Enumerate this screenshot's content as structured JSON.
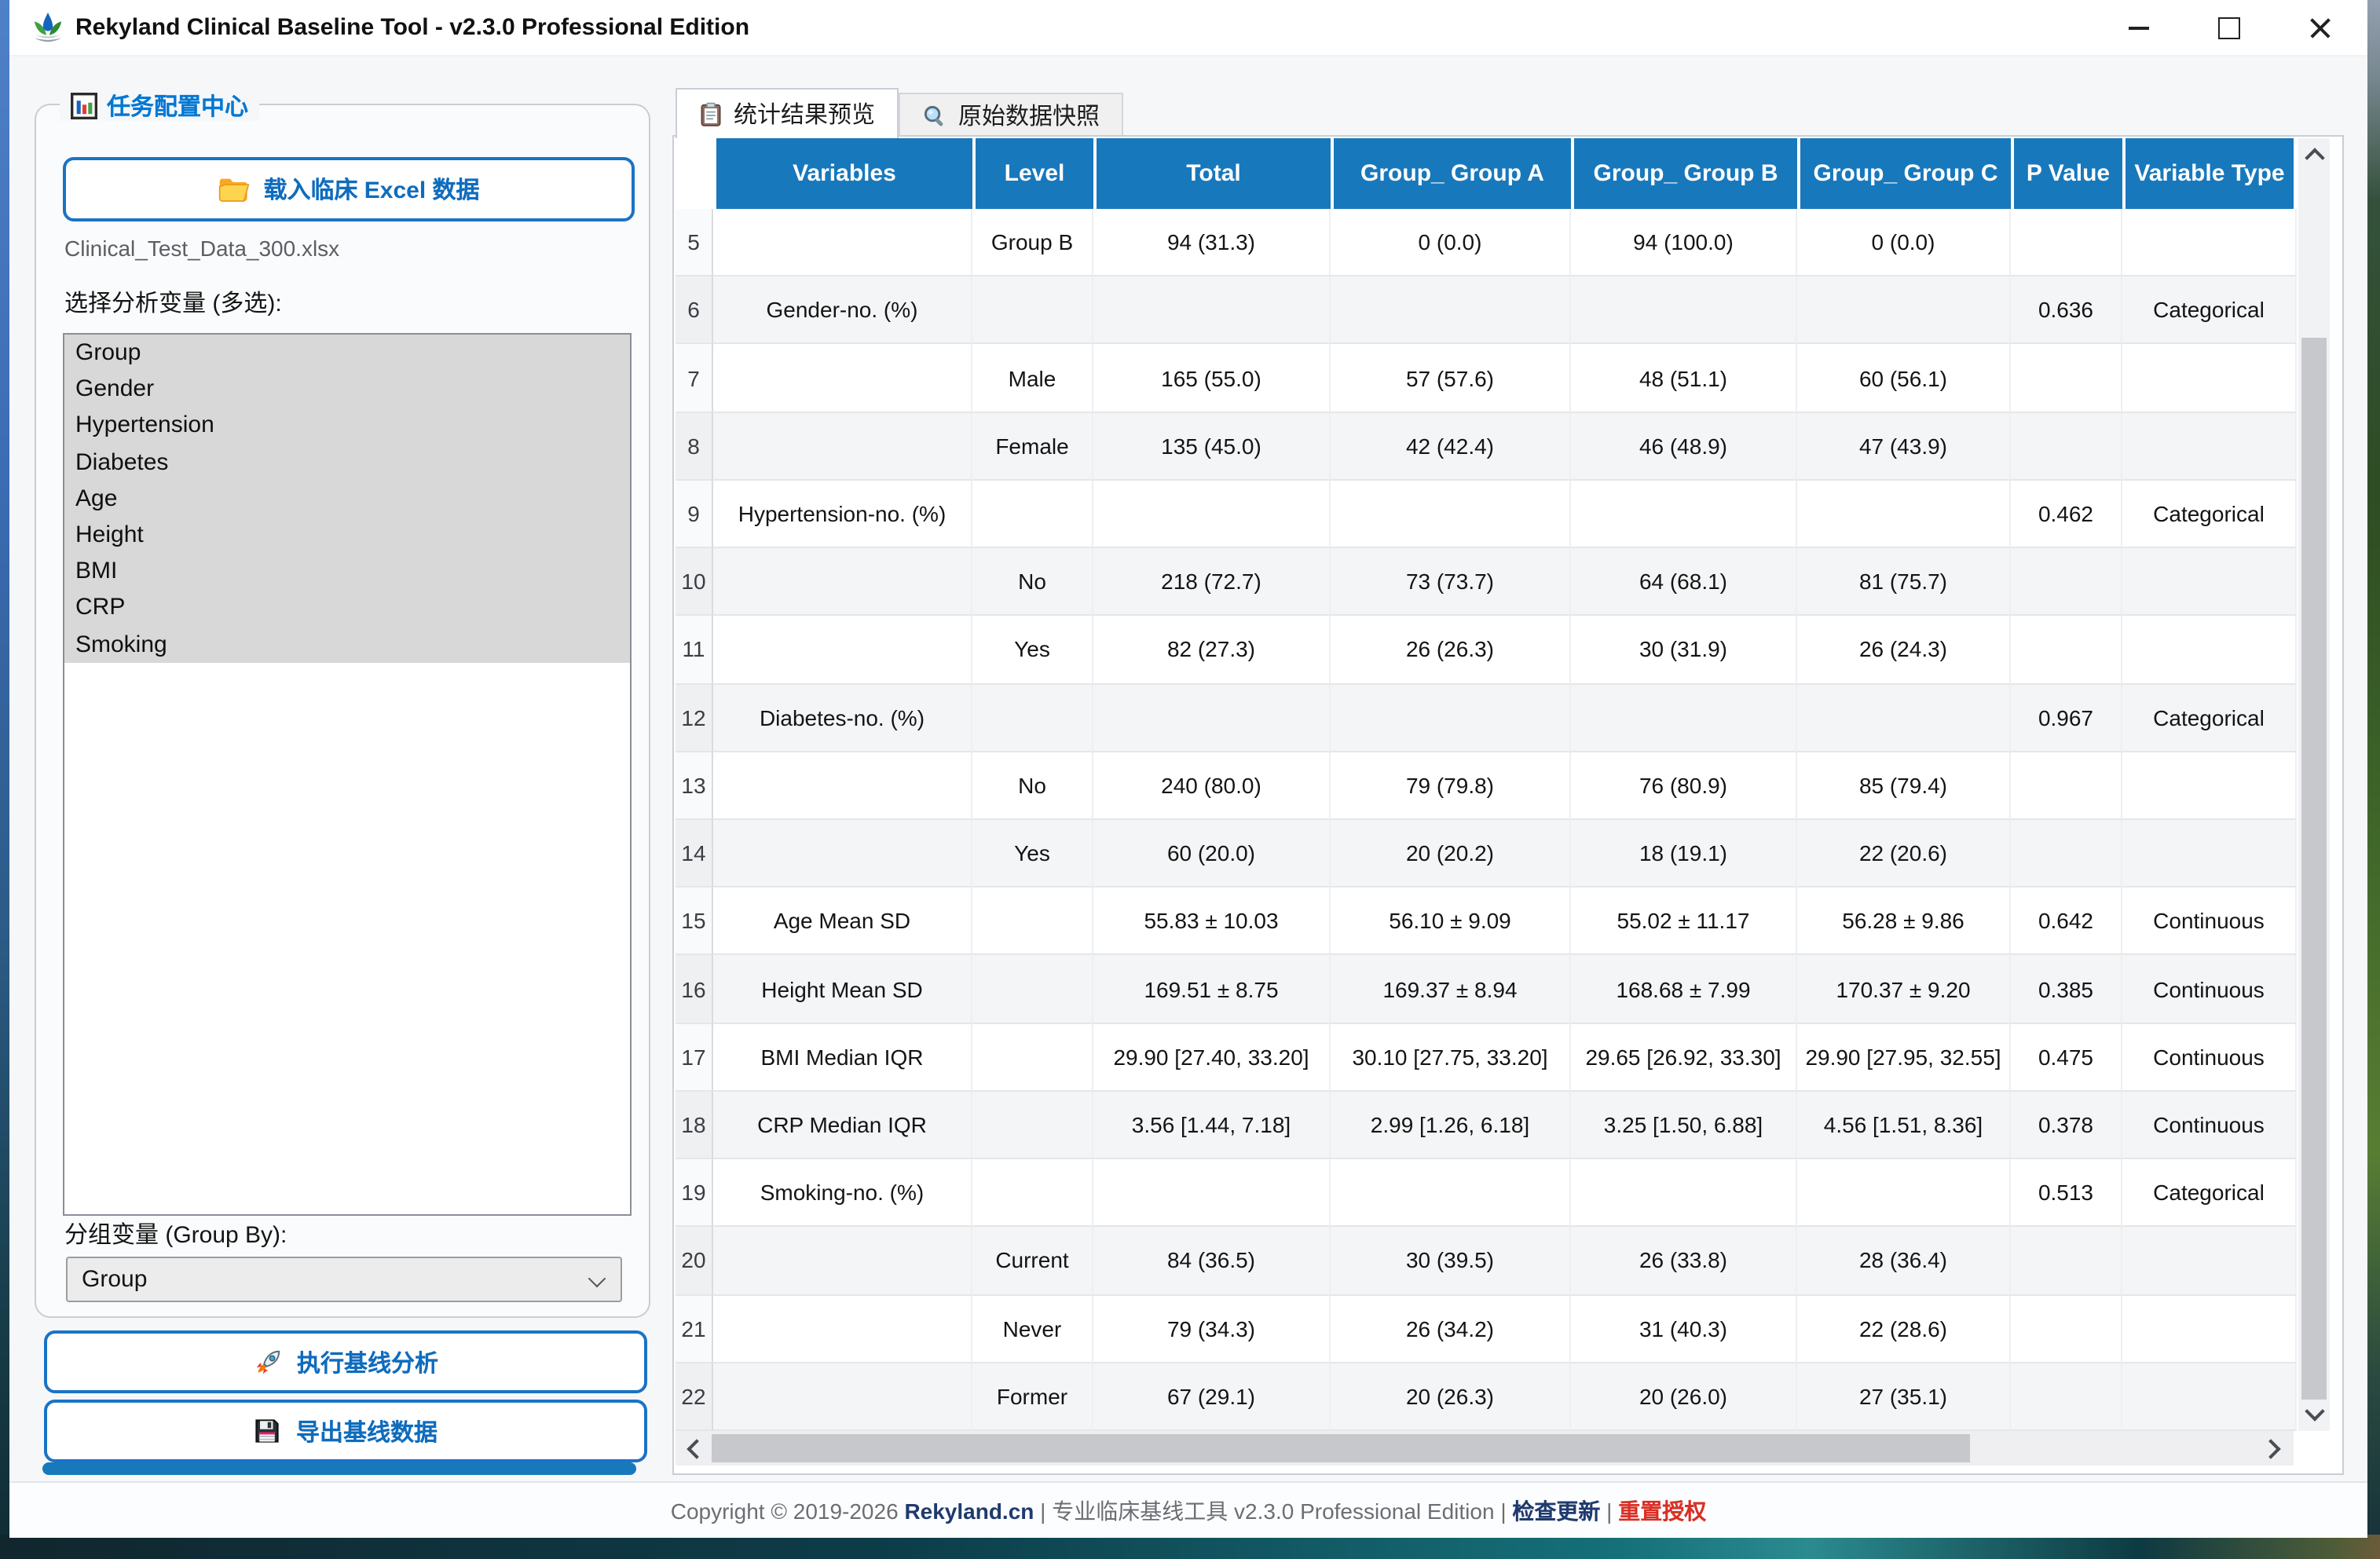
{
  "window": {
    "title": "Rekyland Clinical Baseline Tool - v2.3.0 Professional Edition"
  },
  "sidebar": {
    "panel_title": "任务配置中心",
    "load_button_label": "载入临床 Excel 数据",
    "filename": "Clinical_Test_Data_300.xlsx",
    "variables_label": "选择分析变量 (多选):",
    "variables": [
      "Group",
      "Gender",
      "Hypertension",
      "Diabetes",
      "Age",
      "Height",
      "BMI",
      "CRP",
      "Smoking"
    ],
    "groupby_label": "分组变量 (Group By):",
    "groupby_value": "Group",
    "run_button_label": "执行基线分析",
    "export_button_label": "导出基线数据",
    "progress_percent": 100
  },
  "tabs": [
    {
      "label": "统计结果预览",
      "active": true
    },
    {
      "label": "原始数据快照",
      "active": false
    }
  ],
  "table": {
    "columns": [
      "Variables",
      "Level",
      "Total",
      "Group_ Group A",
      "Group_ Group B",
      "Group_ Group C",
      "P Value",
      "Variable Type"
    ],
    "rows": [
      {
        "num": "5",
        "cells": [
          "",
          "Group B",
          "94 (31.3)",
          "0 (0.0)",
          "94 (100.0)",
          "0 (0.0)",
          "",
          ""
        ]
      },
      {
        "num": "6",
        "cells": [
          "Gender-no. (%)",
          "",
          "",
          "",
          "",
          "",
          "0.636",
          "Categorical"
        ]
      },
      {
        "num": "7",
        "cells": [
          "",
          "Male",
          "165 (55.0)",
          "57 (57.6)",
          "48 (51.1)",
          "60 (56.1)",
          "",
          ""
        ]
      },
      {
        "num": "8",
        "cells": [
          "",
          "Female",
          "135 (45.0)",
          "42 (42.4)",
          "46 (48.9)",
          "47 (43.9)",
          "",
          ""
        ]
      },
      {
        "num": "9",
        "cells": [
          "Hypertension-no. (%)",
          "",
          "",
          "",
          "",
          "",
          "0.462",
          "Categorical"
        ]
      },
      {
        "num": "10",
        "cells": [
          "",
          "No",
          "218 (72.7)",
          "73 (73.7)",
          "64 (68.1)",
          "81 (75.7)",
          "",
          ""
        ]
      },
      {
        "num": "11",
        "cells": [
          "",
          "Yes",
          "82 (27.3)",
          "26 (26.3)",
          "30 (31.9)",
          "26 (24.3)",
          "",
          ""
        ]
      },
      {
        "num": "12",
        "cells": [
          "Diabetes-no. (%)",
          "",
          "",
          "",
          "",
          "",
          "0.967",
          "Categorical"
        ]
      },
      {
        "num": "13",
        "cells": [
          "",
          "No",
          "240 (80.0)",
          "79 (79.8)",
          "76 (80.9)",
          "85 (79.4)",
          "",
          ""
        ]
      },
      {
        "num": "14",
        "cells": [
          "",
          "Yes",
          "60 (20.0)",
          "20 (20.2)",
          "18 (19.1)",
          "22 (20.6)",
          "",
          ""
        ]
      },
      {
        "num": "15",
        "cells": [
          "Age Mean SD",
          "",
          "55.83 ± 10.03",
          "56.10 ± 9.09",
          "55.02 ± 11.17",
          "56.28 ± 9.86",
          "0.642",
          "Continuous"
        ]
      },
      {
        "num": "16",
        "cells": [
          "Height Mean SD",
          "",
          "169.51 ± 8.75",
          "169.37 ± 8.94",
          "168.68 ± 7.99",
          "170.37 ± 9.20",
          "0.385",
          "Continuous"
        ]
      },
      {
        "num": "17",
        "cells": [
          "BMI Median IQR",
          "",
          "29.90 [27.40, 33.20]",
          "30.10 [27.75, 33.20]",
          "29.65 [26.92, 33.30]",
          "29.90 [27.95, 32.55]",
          "0.475",
          "Continuous"
        ]
      },
      {
        "num": "18",
        "cells": [
          "CRP Median IQR",
          "",
          "3.56 [1.44, 7.18]",
          "2.99 [1.26, 6.18]",
          "3.25 [1.50, 6.88]",
          "4.56 [1.51, 8.36]",
          "0.378",
          "Continuous"
        ]
      },
      {
        "num": "19",
        "cells": [
          "Smoking-no. (%)",
          "",
          "",
          "",
          "",
          "",
          "0.513",
          "Categorical"
        ]
      },
      {
        "num": "20",
        "cells": [
          "",
          "Current",
          "84 (36.5)",
          "30 (39.5)",
          "26 (33.8)",
          "28 (36.4)",
          "",
          ""
        ]
      },
      {
        "num": "21",
        "cells": [
          "",
          "Never",
          "79 (34.3)",
          "26 (34.2)",
          "31 (40.3)",
          "22 (28.6)",
          "",
          ""
        ]
      },
      {
        "num": "22",
        "cells": [
          "",
          "Former",
          "67 (29.1)",
          "20 (26.3)",
          "20 (26.0)",
          "27 (35.1)",
          "",
          ""
        ]
      }
    ]
  },
  "footer": {
    "segments": [
      {
        "text": "Copyright © 2019-2026 ",
        "style": "muted"
      },
      {
        "text": "Rekyland.cn",
        "style": "link"
      },
      {
        "text": " | 专业临床基线工具 v2.3.0 Professional Edition | ",
        "style": "muted"
      },
      {
        "text": "检查更新",
        "style": "link"
      },
      {
        "text": " | ",
        "style": "muted"
      },
      {
        "text": "重置授权",
        "style": "danger"
      }
    ]
  },
  "colors": {
    "header_blue": "#1878bc",
    "accent_blue": "#0f6cbd",
    "button_border": "#1a73c4",
    "title_blue": "#0078d4",
    "progress": "#1878bc",
    "link_navy": "#1f3a6e",
    "danger_red": "#d93025",
    "selection_gray": "#d8d8d8"
  }
}
